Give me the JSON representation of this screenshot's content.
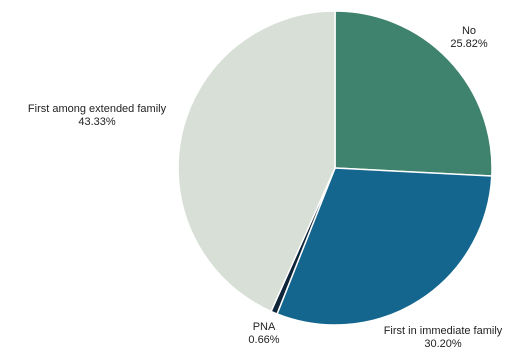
{
  "chart_data": {
    "type": "pie",
    "title": "",
    "start_angle_deg": 0,
    "direction": "clockwise",
    "slices": [
      {
        "label": "No",
        "value": 25.82,
        "value_label": "25.82%",
        "color": "#3f826d"
      },
      {
        "label": "First in immediate family",
        "value": 30.2,
        "value_label": "30.20%",
        "color": "#14668f"
      },
      {
        "label": "PNA",
        "value": 0.66,
        "value_label": "0.66%",
        "color": "#0e2438"
      },
      {
        "label": "First among extended family",
        "value": 43.33,
        "value_label": "43.33%",
        "color": "#d7dfd7"
      }
    ]
  }
}
